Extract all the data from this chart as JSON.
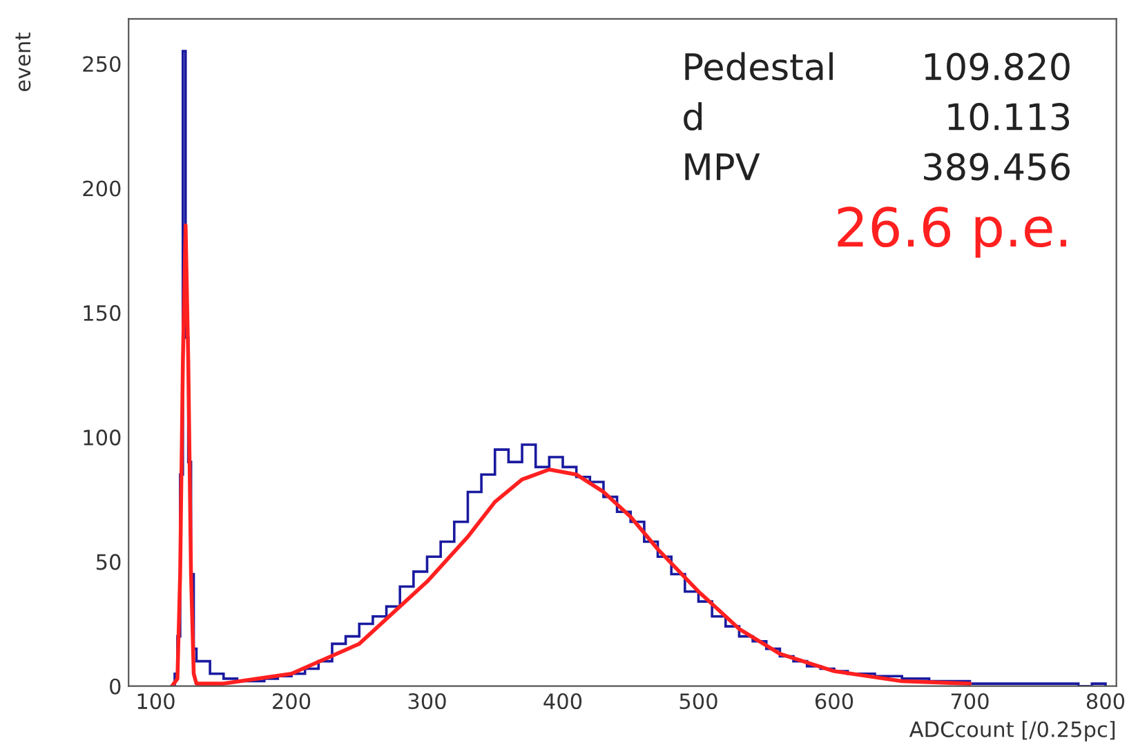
{
  "chart_data": {
    "type": "histogram",
    "xlabel": "ADCcount [/0.25pc]",
    "ylabel": "event",
    "xlim": [
      80,
      808
    ],
    "ylim": [
      0,
      268
    ],
    "xticks": [
      100,
      200,
      300,
      400,
      500,
      600,
      700,
      800
    ],
    "yticks": [
      0,
      50,
      100,
      150,
      200,
      250
    ],
    "grid": false,
    "legend": false,
    "annotations": [
      "Pedestal",
      "109.820",
      "d",
      "10.113",
      "MPV",
      "389.456",
      "26.6 p.e."
    ],
    "series": [
      {
        "color": "#1a1aa0",
        "bins": [
          114,
          116,
          118,
          120,
          122,
          124,
          126,
          128,
          130,
          140,
          150,
          160,
          170,
          180,
          190,
          200,
          210,
          220,
          230,
          240,
          250,
          260,
          270,
          280,
          290,
          300,
          310,
          320,
          330,
          340,
          350,
          360,
          370,
          380,
          390,
          400,
          410,
          420,
          430,
          440,
          450,
          460,
          470,
          480,
          490,
          500,
          510,
          520,
          530,
          540,
          550,
          560,
          570,
          580,
          590,
          600,
          610,
          620,
          630,
          640,
          650,
          660,
          670,
          680,
          690,
          700,
          710,
          720,
          730,
          740,
          750,
          760,
          770,
          780,
          790,
          800
        ],
        "values": [
          5,
          20,
          85,
          255,
          140,
          90,
          45,
          15,
          10,
          5,
          3,
          2,
          2,
          3,
          4,
          5,
          7,
          10,
          17,
          20,
          25,
          28,
          32,
          40,
          46,
          52,
          58,
          66,
          78,
          85,
          95,
          90,
          97,
          88,
          92,
          88,
          84,
          82,
          76,
          70,
          66,
          58,
          52,
          45,
          38,
          34,
          28,
          24,
          20,
          18,
          15,
          12,
          10,
          8,
          7,
          6,
          5,
          5,
          4,
          4,
          3,
          3,
          2,
          2,
          2,
          1,
          1,
          1,
          1,
          1,
          1,
          1,
          1,
          0,
          1
        ]
      },
      {
        "type": "line",
        "color": "#ff2020",
        "x": [
          112,
          116,
          118,
          120,
          122,
          124,
          126,
          128,
          130,
          150,
          200,
          250,
          300,
          330,
          350,
          370,
          390,
          410,
          430,
          450,
          470,
          500,
          530,
          560,
          600,
          650,
          700
        ],
        "values": [
          0,
          3,
          45,
          130,
          185,
          130,
          45,
          5,
          1,
          1,
          5,
          17,
          42,
          60,
          74,
          83,
          87,
          85,
          78,
          68,
          55,
          38,
          23,
          13,
          6,
          2,
          1
        ]
      }
    ]
  }
}
